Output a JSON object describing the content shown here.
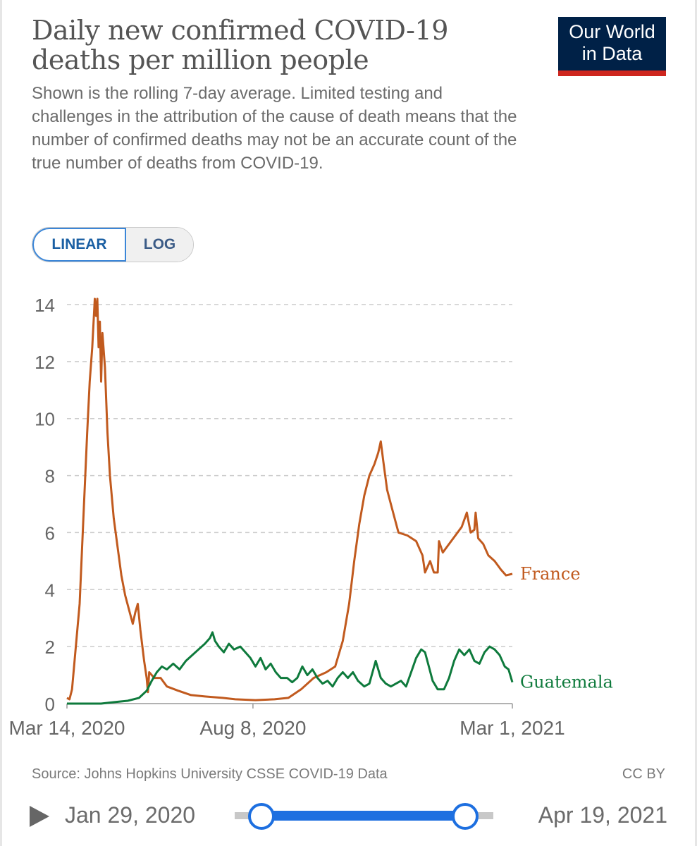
{
  "title": "Daily new confirmed COVID-19 deaths per million people",
  "subtitle": "Shown is the rolling 7-day average. Limited testing and challenges in the attribution of the cause of death means that the number of confirmed deaths may not be an accurate count of the true number of deaths from COVID-19.",
  "logo": {
    "line1": "Our World",
    "line2": "in Data"
  },
  "scale_toggle": {
    "linear_label": "LINEAR",
    "log_label": "LOG",
    "selected": "LINEAR"
  },
  "footer": {
    "source": "Source: Johns Hopkins University CSSE COVID-19 Data",
    "license": "CC BY"
  },
  "timeline": {
    "start_label": "Jan 29, 2020",
    "end_label": "Apr 19, 2021"
  },
  "colors": {
    "france": "#c15a1e",
    "guatemala": "#0e7a3c",
    "grid": "#cccccc",
    "axis_text": "#666666",
    "accent": "#1d6fe0"
  },
  "chart_data": {
    "type": "line",
    "ylim": [
      0,
      14
    ],
    "y_ticks": [
      0,
      2,
      4,
      6,
      8,
      10,
      12,
      14
    ],
    "x_ticks": [
      {
        "date": "2020-03-14",
        "label": "Mar 14, 2020"
      },
      {
        "date": "2020-08-08",
        "label": "Aug 8, 2020"
      },
      {
        "date": "2021-03-01",
        "label": "Mar 1, 2021"
      }
    ],
    "xlim": [
      "2020-03-14",
      "2021-03-01"
    ],
    "grid": true,
    "series": [
      {
        "name": "France",
        "points": [
          [
            "2020-03-14",
            0.2
          ],
          [
            "2020-03-16",
            0.15
          ],
          [
            "2020-03-18",
            0.5
          ],
          [
            "2020-03-20",
            1.5
          ],
          [
            "2020-03-24",
            3.5
          ],
          [
            "2020-03-27",
            6.5
          ],
          [
            "2020-03-30",
            9.5
          ],
          [
            "2020-04-01",
            11.3
          ],
          [
            "2020-04-03",
            12.5
          ],
          [
            "2020-04-05",
            14.2
          ],
          [
            "2020-04-06",
            13.6
          ],
          [
            "2020-04-07",
            14.2
          ],
          [
            "2020-04-08",
            12.5
          ],
          [
            "2020-04-09",
            13.4
          ],
          [
            "2020-04-10",
            11.3
          ],
          [
            "2020-04-11",
            13.0
          ],
          [
            "2020-04-13",
            11.8
          ],
          [
            "2020-04-15",
            9.5
          ],
          [
            "2020-04-17",
            8.0
          ],
          [
            "2020-04-20",
            6.5
          ],
          [
            "2020-04-23",
            5.5
          ],
          [
            "2020-04-26",
            4.5
          ],
          [
            "2020-04-29",
            3.8
          ],
          [
            "2020-05-02",
            3.3
          ],
          [
            "2020-05-05",
            2.8
          ],
          [
            "2020-05-07",
            3.2
          ],
          [
            "2020-05-09",
            3.5
          ],
          [
            "2020-05-11",
            2.6
          ],
          [
            "2020-05-14",
            1.5
          ],
          [
            "2020-05-16",
            0.9
          ],
          [
            "2020-05-17",
            0.4
          ],
          [
            "2020-05-18",
            1.1
          ],
          [
            "2020-05-22",
            0.9
          ],
          [
            "2020-05-27",
            0.9
          ],
          [
            "2020-06-01",
            0.6
          ],
          [
            "2020-06-10",
            0.45
          ],
          [
            "2020-06-20",
            0.3
          ],
          [
            "2020-07-01",
            0.25
          ],
          [
            "2020-07-15",
            0.2
          ],
          [
            "2020-07-25",
            0.15
          ],
          [
            "2020-08-10",
            0.12
          ],
          [
            "2020-08-25",
            0.15
          ],
          [
            "2020-09-05",
            0.2
          ],
          [
            "2020-09-15",
            0.5
          ],
          [
            "2020-09-25",
            0.9
          ],
          [
            "2020-10-05",
            1.1
          ],
          [
            "2020-10-12",
            1.3
          ],
          [
            "2020-10-18",
            2.2
          ],
          [
            "2020-10-23",
            3.5
          ],
          [
            "2020-10-27",
            5.0
          ],
          [
            "2020-10-31",
            6.3
          ],
          [
            "2020-11-04",
            7.3
          ],
          [
            "2020-11-08",
            8.0
          ],
          [
            "2020-11-12",
            8.4
          ],
          [
            "2020-11-15",
            8.8
          ],
          [
            "2020-11-17",
            9.2
          ],
          [
            "2020-11-19",
            8.5
          ],
          [
            "2020-11-22",
            7.5
          ],
          [
            "2020-11-25",
            7.0
          ],
          [
            "2020-11-28",
            6.5
          ],
          [
            "2020-12-01",
            6.0
          ],
          [
            "2020-12-08",
            5.9
          ],
          [
            "2020-12-15",
            5.7
          ],
          [
            "2020-12-20",
            5.2
          ],
          [
            "2020-12-22",
            4.6
          ],
          [
            "2020-12-26",
            5.0
          ],
          [
            "2020-12-29",
            4.6
          ],
          [
            "2021-01-01",
            4.6
          ],
          [
            "2021-01-02",
            5.7
          ],
          [
            "2021-01-05",
            5.3
          ],
          [
            "2021-01-10",
            5.6
          ],
          [
            "2021-01-15",
            5.9
          ],
          [
            "2021-01-20",
            6.2
          ],
          [
            "2021-01-24",
            6.7
          ],
          [
            "2021-01-27",
            6.0
          ],
          [
            "2021-01-30",
            6.1
          ],
          [
            "2021-01-31",
            6.7
          ],
          [
            "2021-02-02",
            5.8
          ],
          [
            "2021-02-06",
            5.6
          ],
          [
            "2021-02-10",
            5.2
          ],
          [
            "2021-02-15",
            5.0
          ],
          [
            "2021-02-20",
            4.7
          ],
          [
            "2021-02-24",
            4.5
          ],
          [
            "2021-03-01",
            4.55
          ]
        ]
      },
      {
        "name": "Guatemala",
        "points": [
          [
            "2020-03-14",
            0.0
          ],
          [
            "2020-04-10",
            0.0
          ],
          [
            "2020-04-20",
            0.05
          ],
          [
            "2020-05-01",
            0.1
          ],
          [
            "2020-05-10",
            0.2
          ],
          [
            "2020-05-16",
            0.45
          ],
          [
            "2020-05-20",
            0.8
          ],
          [
            "2020-05-24",
            1.1
          ],
          [
            "2020-05-28",
            1.3
          ],
          [
            "2020-06-01",
            1.2
          ],
          [
            "2020-06-06",
            1.4
          ],
          [
            "2020-06-11",
            1.2
          ],
          [
            "2020-06-16",
            1.5
          ],
          [
            "2020-06-21",
            1.7
          ],
          [
            "2020-06-26",
            1.9
          ],
          [
            "2020-07-01",
            2.1
          ],
          [
            "2020-07-05",
            2.3
          ],
          [
            "2020-07-07",
            2.5
          ],
          [
            "2020-07-09",
            2.2
          ],
          [
            "2020-07-12",
            2.0
          ],
          [
            "2020-07-16",
            1.8
          ],
          [
            "2020-07-20",
            2.1
          ],
          [
            "2020-07-24",
            1.9
          ],
          [
            "2020-07-29",
            2.0
          ],
          [
            "2020-08-02",
            1.8
          ],
          [
            "2020-08-06",
            1.6
          ],
          [
            "2020-08-10",
            1.3
          ],
          [
            "2020-08-14",
            1.6
          ],
          [
            "2020-08-18",
            1.2
          ],
          [
            "2020-08-22",
            1.4
          ],
          [
            "2020-08-26",
            1.1
          ],
          [
            "2020-08-30",
            0.9
          ],
          [
            "2020-09-04",
            0.9
          ],
          [
            "2020-09-08",
            0.75
          ],
          [
            "2020-09-12",
            0.9
          ],
          [
            "2020-09-16",
            1.3
          ],
          [
            "2020-09-20",
            1.0
          ],
          [
            "2020-09-24",
            1.2
          ],
          [
            "2020-09-28",
            0.9
          ],
          [
            "2020-10-02",
            0.7
          ],
          [
            "2020-10-06",
            0.8
          ],
          [
            "2020-10-10",
            0.6
          ],
          [
            "2020-10-14",
            0.9
          ],
          [
            "2020-10-18",
            1.1
          ],
          [
            "2020-10-22",
            0.9
          ],
          [
            "2020-10-26",
            1.1
          ],
          [
            "2020-10-30",
            0.8
          ],
          [
            "2020-11-04",
            0.6
          ],
          [
            "2020-11-08",
            0.7
          ],
          [
            "2020-11-13",
            1.5
          ],
          [
            "2020-11-17",
            0.9
          ],
          [
            "2020-11-21",
            0.7
          ],
          [
            "2020-11-25",
            0.6
          ],
          [
            "2020-11-29",
            0.7
          ],
          [
            "2020-12-03",
            0.8
          ],
          [
            "2020-12-07",
            0.6
          ],
          [
            "2020-12-11",
            1.1
          ],
          [
            "2020-12-15",
            1.6
          ],
          [
            "2020-12-19",
            1.9
          ],
          [
            "2020-12-22",
            1.8
          ],
          [
            "2020-12-25",
            1.3
          ],
          [
            "2020-12-28",
            0.8
          ],
          [
            "2021-01-01",
            0.5
          ],
          [
            "2021-01-06",
            0.5
          ],
          [
            "2021-01-10",
            0.9
          ],
          [
            "2021-01-14",
            1.5
          ],
          [
            "2021-01-18",
            1.9
          ],
          [
            "2021-01-22",
            1.7
          ],
          [
            "2021-01-26",
            1.9
          ],
          [
            "2021-01-30",
            1.5
          ],
          [
            "2021-02-03",
            1.4
          ],
          [
            "2021-02-07",
            1.8
          ],
          [
            "2021-02-11",
            2.0
          ],
          [
            "2021-02-15",
            1.9
          ],
          [
            "2021-02-19",
            1.7
          ],
          [
            "2021-02-23",
            1.3
          ],
          [
            "2021-02-26",
            1.2
          ],
          [
            "2021-03-01",
            0.75
          ]
        ]
      }
    ]
  }
}
